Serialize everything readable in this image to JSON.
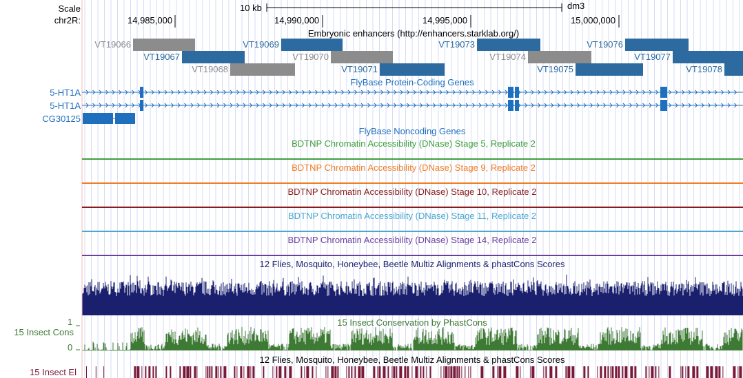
{
  "ruler": {
    "scale_label": "Scale",
    "scale_bar_label": "10 kb",
    "assembly": "dm3",
    "chrom_label": "chr2R:",
    "positions": [
      "14,985,000",
      "14,990,000",
      "14,995,000",
      "15,000,000"
    ]
  },
  "tracks": {
    "enhancers": {
      "title": "Embryonic enhancers (http://enhancers.starklab.org/)",
      "items": [
        {
          "name": "VT19066",
          "color": "#8c8c8c"
        },
        {
          "name": "VT19067",
          "color": "#2c6aa0"
        },
        {
          "name": "VT19068",
          "color": "#8c8c8c"
        },
        {
          "name": "VT19069",
          "color": "#2c6aa0"
        },
        {
          "name": "VT19070",
          "color": "#8c8c8c"
        },
        {
          "name": "VT19071",
          "color": "#2c6aa0"
        },
        {
          "name": "VT19073",
          "color": "#2c6aa0"
        },
        {
          "name": "VT19074",
          "color": "#8c8c8c"
        },
        {
          "name": "VT19075",
          "color": "#2c6aa0"
        },
        {
          "name": "VT19076",
          "color": "#2c6aa0"
        },
        {
          "name": "VT19077",
          "color": "#2c6aa0"
        },
        {
          "name": "VT19078",
          "color": "#2c6aa0"
        }
      ]
    },
    "flybase_coding": {
      "title": "FlyBase Protein-Coding Genes",
      "color": "#1f6fbf",
      "genes": [
        "5-HT1A",
        "5-HT1A",
        "CG30125"
      ]
    },
    "flybase_noncoding": {
      "title": "FlyBase Noncoding Genes",
      "color": "#1f6fbf"
    },
    "dnase": [
      {
        "title": "BDTNP Chromatin Accessibility (DNase) Stage 5, Replicate 2",
        "color": "#3f9f3f"
      },
      {
        "title": "BDTNP Chromatin Accessibility (DNase) Stage 9, Replicate 2",
        "color": "#f07c24"
      },
      {
        "title": "BDTNP Chromatin Accessibility (DNase) Stage 10, Replicate 2",
        "color": "#8b1c1c"
      },
      {
        "title": "BDTNP Chromatin Accessibility (DNase) Stage 11, Replicate 2",
        "color": "#4aa8d0"
      },
      {
        "title": "BDTNP Chromatin Accessibility (DNase) Stage 14, Replicate 2",
        "color": "#6b3fa0"
      }
    ],
    "multiz": {
      "title": "12 Flies, Mosquito, Honeybee, Beetle Multiz Alignments & phastCons Scores",
      "color": "#1a1f6e"
    },
    "phastcons": {
      "title": "15 Insect Conservation by PhastCons",
      "side_label": "15 Insect Cons",
      "ymax_label": "1",
      "ymin_label": "0",
      "color": "#3d7a33"
    },
    "elements": {
      "title": "12 Flies, Mosquito, Honeybee, Beetle Multiz Alignments & phastCons Scores",
      "side_label": "15 Insect El",
      "color": "#7a1a3a"
    }
  }
}
